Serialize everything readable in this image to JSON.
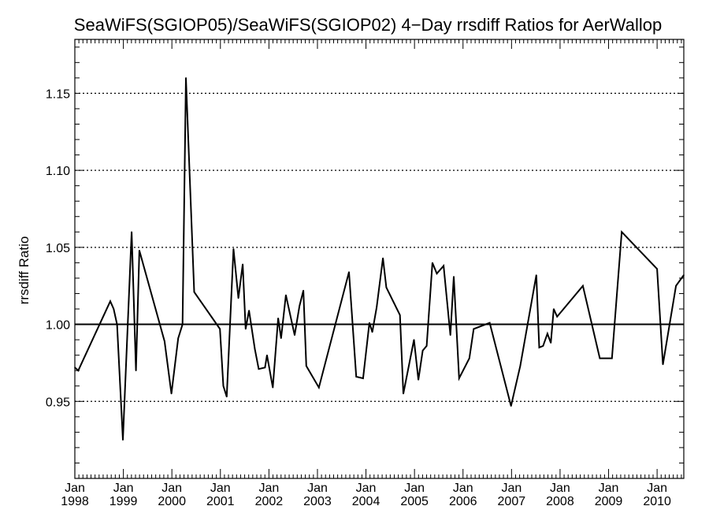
{
  "chart_data": {
    "type": "line",
    "title": "SeaWiFS(SGIOP05)/SeaWiFS(SGIOP02) 4−Day rrsdiff Ratios for AerWallop",
    "xlabel": "",
    "ylabel": "rrsdiff Ratio",
    "xlim": [
      1998.0,
      2010.55
    ],
    "ylim": [
      0.9,
      1.185
    ],
    "reference_line": 1.0,
    "grid": "horizontal-dotted",
    "y_ticks": [
      0.95,
      1.0,
      1.05,
      1.1,
      1.15
    ],
    "y_tick_labels": [
      "0.95",
      "1.00",
      "1.05",
      "1.10",
      "1.15"
    ],
    "x_ticks": [
      1998,
      1999,
      2000,
      2001,
      2002,
      2003,
      2004,
      2005,
      2006,
      2007,
      2008,
      2009,
      2010
    ],
    "x_tick_labels": [
      {
        "month": "Jan",
        "year": "1998"
      },
      {
        "month": "Jan",
        "year": "1999"
      },
      {
        "month": "Jan",
        "year": "2000"
      },
      {
        "month": "Jan",
        "year": "2001"
      },
      {
        "month": "Jan",
        "year": "2002"
      },
      {
        "month": "Jan",
        "year": "2003"
      },
      {
        "month": "Jan",
        "year": "2004"
      },
      {
        "month": "Jan",
        "year": "2005"
      },
      {
        "month": "Jan",
        "year": "2006"
      },
      {
        "month": "Jan",
        "year": "2007"
      },
      {
        "month": "Jan",
        "year": "2008"
      },
      {
        "month": "Jan",
        "year": "2009"
      },
      {
        "month": "Jan",
        "year": "2010"
      }
    ],
    "series": [
      {
        "color": "#000000",
        "x": [
          1998.0,
          1998.07,
          1998.73,
          1998.8,
          1998.87,
          1998.99,
          1999.17,
          1999.26,
          1999.33,
          1999.85,
          1999.99,
          2000.13,
          2000.22,
          2000.29,
          2000.46,
          2000.99,
          2001.06,
          2001.13,
          2001.27,
          2001.37,
          2001.46,
          2001.52,
          2001.59,
          2001.71,
          2001.79,
          2001.92,
          2001.96,
          2002.08,
          2002.19,
          2002.25,
          2002.35,
          2002.53,
          2002.63,
          2002.71,
          2002.77,
          2003.03,
          2003.65,
          2003.8,
          2003.94,
          2004.07,
          2004.13,
          2004.22,
          2004.35,
          2004.42,
          2004.7,
          2004.77,
          2004.99,
          2005.08,
          2005.17,
          2005.25,
          2005.37,
          2005.46,
          2005.6,
          2005.74,
          2005.81,
          2005.92,
          2006.13,
          2006.22,
          2006.55,
          2006.99,
          2007.18,
          2007.51,
          2007.57,
          2007.65,
          2007.74,
          2007.81,
          2007.87,
          2007.94,
          2008.47,
          2008.82,
          2009.07,
          2009.27,
          2010.0,
          2010.12,
          2010.39,
          2010.55
        ],
        "values": [
          0.972,
          0.97,
          1.015,
          1.01,
          1.0,
          0.925,
          1.06,
          0.97,
          1.048,
          0.989,
          0.955,
          0.991,
          1.0,
          1.16,
          1.021,
          0.997,
          0.96,
          0.953,
          1.049,
          1.017,
          1.039,
          0.997,
          1.009,
          0.984,
          0.971,
          0.972,
          0.98,
          0.959,
          1.004,
          0.991,
          1.019,
          0.993,
          1.012,
          1.022,
          0.973,
          0.959,
          1.034,
          0.966,
          0.965,
          1.001,
          0.995,
          1.011,
          1.043,
          1.024,
          1.006,
          0.955,
          0.99,
          0.964,
          0.983,
          0.986,
          1.04,
          1.033,
          1.038,
          0.993,
          1.031,
          0.965,
          0.978,
          0.997,
          1.001,
          0.947,
          0.973,
          1.032,
          0.985,
          0.986,
          0.994,
          0.988,
          1.01,
          1.005,
          1.025,
          0.978,
          0.978,
          1.06,
          1.036,
          0.974,
          1.025,
          1.032
        ]
      }
    ]
  }
}
